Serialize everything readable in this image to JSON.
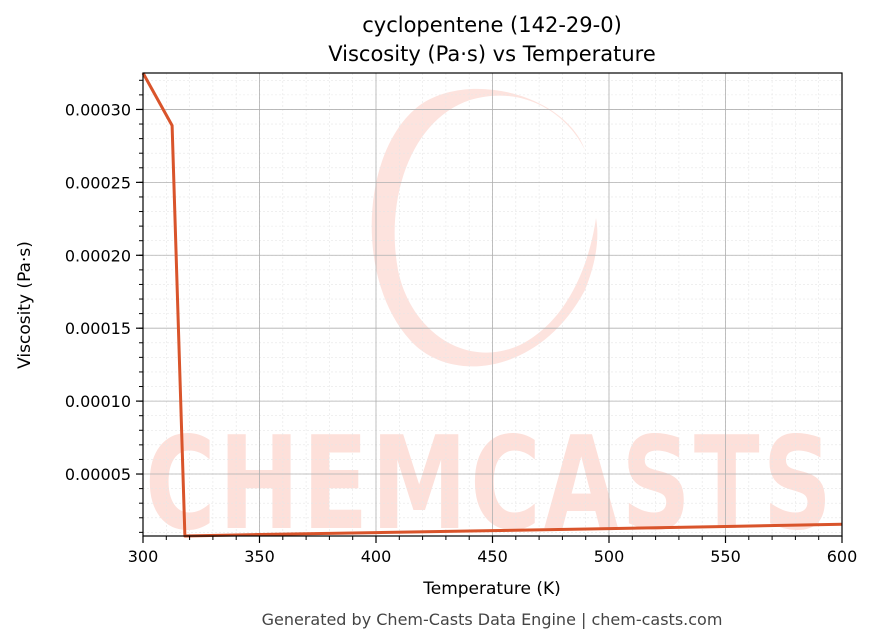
{
  "chart_data": {
    "type": "line",
    "title": "cyclopentene (142-29-0)",
    "subtitle": "Viscosity (Pa·s) vs Temperature",
    "xlabel": "Temperature (K)",
    "ylabel": "Viscosity (Pa·s)",
    "xlim": [
      300,
      600
    ],
    "ylim": [
      7.5e-06,
      0.000325
    ],
    "x_ticks": [
      "300",
      "350",
      "400",
      "450",
      "500",
      "550",
      "600"
    ],
    "y_ticks": [
      "0.00005",
      "0.00010",
      "0.00015",
      "0.00020",
      "0.00025",
      "0.00030"
    ],
    "grid": true,
    "line_color": "#d9542b",
    "series": [
      {
        "x": [
          300,
          312.5,
          318,
          350,
          400,
          450,
          500,
          550,
          600
        ],
        "y": [
          0.000325,
          0.000289,
          7.5e-06,
          8.5e-06,
          9.8e-06,
          1.12e-05,
          1.26e-05,
          1.4e-05,
          1.55e-05
        ]
      }
    ]
  },
  "watermark": {
    "text": "CHEMCASTS",
    "color": "#fde0da"
  },
  "footer": "Generated by Chem-Casts Data Engine | chem-casts.com"
}
